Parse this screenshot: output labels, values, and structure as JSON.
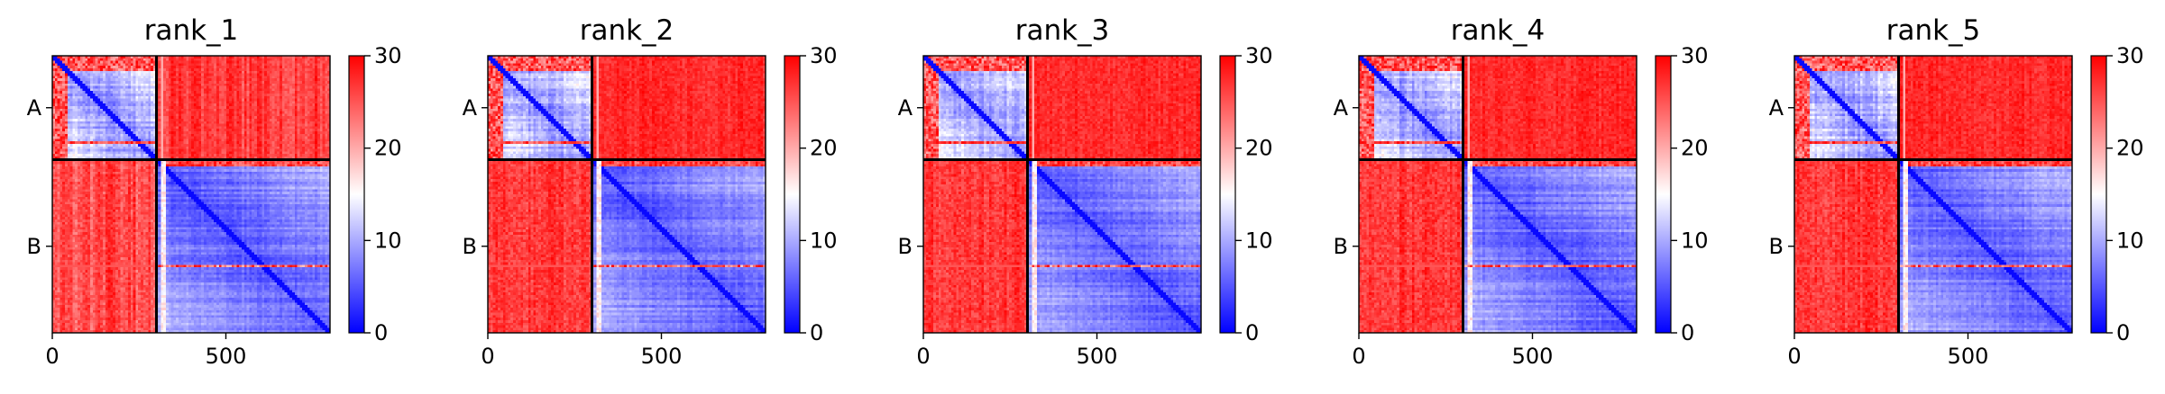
{
  "chart_data": [
    {
      "type": "heatmap",
      "title": "rank_1",
      "xlabel": "",
      "ylabel": "",
      "x_ticks": [
        "0",
        "500"
      ],
      "y_tick_labels": [
        "A",
        "B"
      ],
      "chain_lengths": [
        300,
        500
      ],
      "xlim": [
        0,
        800
      ],
      "colorbar": {
        "min": 0,
        "max": 30,
        "ticks": [
          "0",
          "10",
          "20",
          "30"
        ],
        "colormap": "bwr"
      },
      "colors": {
        "low": "#0000ff",
        "mid": "#ffffff",
        "high": "#ff0000"
      }
    },
    {
      "type": "heatmap",
      "title": "rank_2",
      "xlabel": "",
      "ylabel": "",
      "x_ticks": [
        "0",
        "500"
      ],
      "y_tick_labels": [
        "A",
        "B"
      ],
      "chain_lengths": [
        300,
        500
      ],
      "xlim": [
        0,
        800
      ],
      "colorbar": {
        "min": 0,
        "max": 30,
        "ticks": [
          "0",
          "10",
          "20",
          "30"
        ],
        "colormap": "bwr"
      },
      "colors": {
        "low": "#0000ff",
        "mid": "#ffffff",
        "high": "#ff0000"
      }
    },
    {
      "type": "heatmap",
      "title": "rank_3",
      "xlabel": "",
      "ylabel": "",
      "x_ticks": [
        "0",
        "500"
      ],
      "y_tick_labels": [
        "A",
        "B"
      ],
      "chain_lengths": [
        300,
        500
      ],
      "xlim": [
        0,
        800
      ],
      "colorbar": {
        "min": 0,
        "max": 30,
        "ticks": [
          "0",
          "10",
          "20",
          "30"
        ],
        "colormap": "bwr"
      },
      "colors": {
        "low": "#0000ff",
        "mid": "#ffffff",
        "high": "#ff0000"
      }
    },
    {
      "type": "heatmap",
      "title": "rank_4",
      "xlabel": "",
      "ylabel": "",
      "x_ticks": [
        "0",
        "500"
      ],
      "y_tick_labels": [
        "A",
        "B"
      ],
      "chain_lengths": [
        300,
        500
      ],
      "xlim": [
        0,
        800
      ],
      "colorbar": {
        "min": 0,
        "max": 30,
        "ticks": [
          "0",
          "10",
          "20",
          "30"
        ],
        "colormap": "bwr"
      },
      "colors": {
        "low": "#0000ff",
        "mid": "#ffffff",
        "high": "#ff0000"
      }
    },
    {
      "type": "heatmap",
      "title": "rank_5",
      "xlabel": "",
      "ylabel": "",
      "x_ticks": [
        "0",
        "500"
      ],
      "y_tick_labels": [
        "A",
        "B"
      ],
      "chain_lengths": [
        300,
        500
      ],
      "xlim": [
        0,
        800
      ],
      "colorbar": {
        "min": 0,
        "max": 30,
        "ticks": [
          "0",
          "10",
          "20",
          "30"
        ],
        "colormap": "bwr"
      },
      "colors": {
        "low": "#0000ff",
        "mid": "#ffffff",
        "high": "#ff0000"
      }
    }
  ]
}
